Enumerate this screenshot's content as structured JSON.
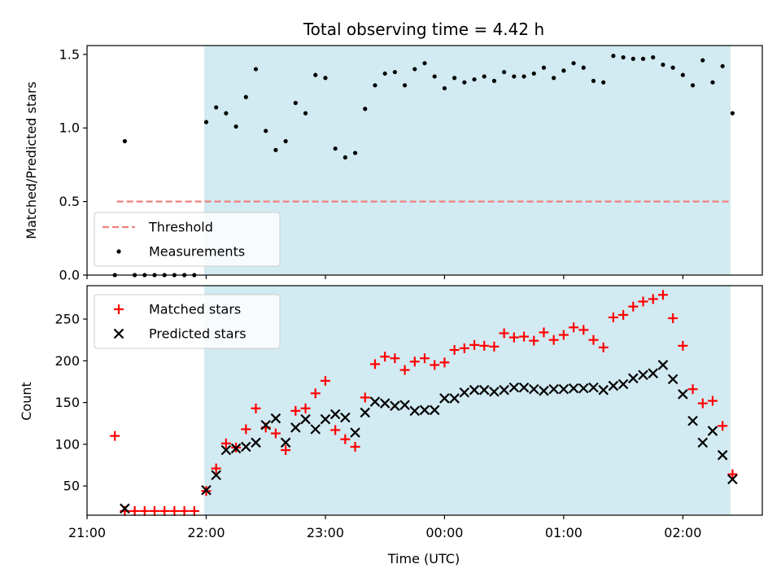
{
  "chart_data": {
    "type": "scatter",
    "title": "Total observing time = 4.42 h",
    "xlabel": "Time (UTC)",
    "x_unit": "hours",
    "xlim": [
      "21:00",
      "02:40"
    ],
    "x_ticks": [
      {
        "t": "21:00",
        "label": "21:00"
      },
      {
        "t": "22:00",
        "label": "22:00"
      },
      {
        "t": "23:00",
        "label": "23:00"
      },
      {
        "t": "00:00",
        "label": "00:00"
      },
      {
        "t": "01:00",
        "label": "01:00"
      },
      {
        "t": "02:00",
        "label": "02:00"
      }
    ],
    "observing_window": {
      "start": "21:59",
      "end": "02:24",
      "color": "#add8e6"
    },
    "panels": [
      {
        "id": "ratio",
        "ylabel": "Matched/Predicted stars",
        "ylim": [
          0,
          1.56
        ],
        "y_ticks": [
          0.0,
          0.5,
          1.0,
          1.5
        ],
        "y_tick_labels": [
          "0.0",
          "0.5",
          "1.0",
          "1.5"
        ],
        "legend": {
          "position": "lower-left",
          "entries": [
            "Threshold",
            "Measurements"
          ]
        },
        "threshold": {
          "name": "Threshold",
          "value": 0.5,
          "from": "21:15",
          "to": "02:24",
          "color": "#f08080"
        },
        "series": [
          {
            "name": "Measurements",
            "kind": "dot",
            "color": "#000000",
            "points": [
              [
                "21:14",
                0.0
              ],
              [
                "21:19",
                0.91
              ],
              [
                "21:24",
                0.0
              ],
              [
                "21:29",
                0.0
              ],
              [
                "21:34",
                0.0
              ],
              [
                "21:39",
                0.0
              ],
              [
                "21:44",
                0.0
              ],
              [
                "21:49",
                0.0
              ],
              [
                "21:54",
                0.0
              ],
              [
                "22:00",
                1.04
              ],
              [
                "22:05",
                1.14
              ],
              [
                "22:10",
                1.1
              ],
              [
                "22:15",
                1.01
              ],
              [
                "22:20",
                1.21
              ],
              [
                "22:25",
                1.4
              ],
              [
                "22:30",
                0.98
              ],
              [
                "22:35",
                0.85
              ],
              [
                "22:40",
                0.91
              ],
              [
                "22:45",
                1.17
              ],
              [
                "22:50",
                1.1
              ],
              [
                "22:55",
                1.36
              ],
              [
                "23:00",
                1.34
              ],
              [
                "23:05",
                0.86
              ],
              [
                "23:10",
                0.8
              ],
              [
                "23:15",
                0.83
              ],
              [
                "23:20",
                1.13
              ],
              [
                "23:25",
                1.29
              ],
              [
                "23:30",
                1.37
              ],
              [
                "23:35",
                1.38
              ],
              [
                "23:40",
                1.29
              ],
              [
                "23:45",
                1.4
              ],
              [
                "23:50",
                1.44
              ],
              [
                "23:55",
                1.35
              ],
              [
                "00:00",
                1.27
              ],
              [
                "00:05",
                1.34
              ],
              [
                "00:10",
                1.31
              ],
              [
                "00:15",
                1.33
              ],
              [
                "00:20",
                1.35
              ],
              [
                "00:25",
                1.32
              ],
              [
                "00:30",
                1.38
              ],
              [
                "00:35",
                1.35
              ],
              [
                "00:40",
                1.35
              ],
              [
                "00:45",
                1.37
              ],
              [
                "00:50",
                1.41
              ],
              [
                "00:55",
                1.34
              ],
              [
                "01:00",
                1.39
              ],
              [
                "01:05",
                1.44
              ],
              [
                "01:10",
                1.41
              ],
              [
                "01:15",
                1.32
              ],
              [
                "01:20",
                1.31
              ],
              [
                "01:25",
                1.49
              ],
              [
                "01:30",
                1.48
              ],
              [
                "01:35",
                1.47
              ],
              [
                "01:40",
                1.47
              ],
              [
                "01:45",
                1.48
              ],
              [
                "01:50",
                1.43
              ],
              [
                "01:55",
                1.41
              ],
              [
                "02:00",
                1.36
              ],
              [
                "02:05",
                1.29
              ],
              [
                "02:10",
                1.46
              ],
              [
                "02:15",
                1.31
              ],
              [
                "02:20",
                1.42
              ],
              [
                "02:25",
                1.1
              ]
            ]
          }
        ]
      },
      {
        "id": "count",
        "ylabel": "Count",
        "ylim": [
          15,
          290
        ],
        "y_ticks": [
          50,
          100,
          150,
          200,
          250
        ],
        "y_tick_labels": [
          "50",
          "100",
          "150",
          "200",
          "250"
        ],
        "legend": {
          "position": "upper-left",
          "entries": [
            "Matched stars",
            "Predicted stars"
          ]
        },
        "series": [
          {
            "name": "Matched stars",
            "kind": "plus",
            "color": "#ff0000",
            "points": [
              [
                "21:14",
                110
              ],
              [
                "21:19",
                20
              ],
              [
                "21:24",
                20
              ],
              [
                "21:29",
                20
              ],
              [
                "21:34",
                20
              ],
              [
                "21:39",
                20
              ],
              [
                "21:44",
                20
              ],
              [
                "21:49",
                20
              ],
              [
                "21:54",
                20
              ],
              [
                "22:00",
                44
              ],
              [
                "22:05",
                71
              ],
              [
                "22:10",
                101
              ],
              [
                "22:15",
                96
              ],
              [
                "22:20",
                118
              ],
              [
                "22:25",
                143
              ],
              [
                "22:30",
                120
              ],
              [
                "22:35",
                113
              ],
              [
                "22:40",
                93
              ],
              [
                "22:45",
                140
              ],
              [
                "22:50",
                143
              ],
              [
                "22:55",
                161
              ],
              [
                "23:00",
                176
              ],
              [
                "23:05",
                117
              ],
              [
                "23:10",
                106
              ],
              [
                "23:15",
                97
              ],
              [
                "23:20",
                156
              ],
              [
                "23:25",
                196
              ],
              [
                "23:30",
                205
              ],
              [
                "23:35",
                203
              ],
              [
                "23:40",
                189
              ],
              [
                "23:45",
                199
              ],
              [
                "23:50",
                203
              ],
              [
                "23:55",
                195
              ],
              [
                "00:00",
                198
              ],
              [
                "00:05",
                213
              ],
              [
                "00:10",
                215
              ],
              [
                "00:15",
                219
              ],
              [
                "00:20",
                218
              ],
              [
                "00:25",
                217
              ],
              [
                "00:30",
                233
              ],
              [
                "00:35",
                228
              ],
              [
                "00:40",
                229
              ],
              [
                "00:45",
                224
              ],
              [
                "00:50",
                234
              ],
              [
                "00:55",
                225
              ],
              [
                "01:00",
                231
              ],
              [
                "01:05",
                240
              ],
              [
                "01:10",
                237
              ],
              [
                "01:15",
                225
              ],
              [
                "01:20",
                216
              ],
              [
                "01:25",
                252
              ],
              [
                "01:30",
                255
              ],
              [
                "01:35",
                265
              ],
              [
                "01:40",
                271
              ],
              [
                "01:45",
                274
              ],
              [
                "01:50",
                279
              ],
              [
                "01:55",
                251
              ],
              [
                "02:00",
                218
              ],
              [
                "02:05",
                166
              ],
              [
                "02:10",
                149
              ],
              [
                "02:15",
                152
              ],
              [
                "02:20",
                122
              ],
              [
                "02:25",
                64
              ]
            ]
          },
          {
            "name": "Predicted stars",
            "kind": "x",
            "color": "#000000",
            "points": [
              [
                "21:19",
                23
              ],
              [
                "22:00",
                45
              ],
              [
                "22:05",
                63
              ],
              [
                "22:10",
                93
              ],
              [
                "22:15",
                95
              ],
              [
                "22:20",
                97
              ],
              [
                "22:25",
                102
              ],
              [
                "22:30",
                123
              ],
              [
                "22:35",
                131
              ],
              [
                "22:40",
                102
              ],
              [
                "22:45",
                120
              ],
              [
                "22:50",
                130
              ],
              [
                "22:55",
                118
              ],
              [
                "23:00",
                130
              ],
              [
                "23:05",
                136
              ],
              [
                "23:10",
                132
              ],
              [
                "23:15",
                114
              ],
              [
                "23:20",
                138
              ],
              [
                "23:25",
                151
              ],
              [
                "23:30",
                149
              ],
              [
                "23:35",
                146
              ],
              [
                "23:40",
                147
              ],
              [
                "23:45",
                140
              ],
              [
                "23:50",
                141
              ],
              [
                "23:55",
                141
              ],
              [
                "00:00",
                155
              ],
              [
                "00:05",
                155
              ],
              [
                "00:10",
                162
              ],
              [
                "00:15",
                165
              ],
              [
                "00:20",
                165
              ],
              [
                "00:25",
                163
              ],
              [
                "00:30",
                165
              ],
              [
                "00:35",
                168
              ],
              [
                "00:40",
                168
              ],
              [
                "00:45",
                166
              ],
              [
                "00:50",
                164
              ],
              [
                "00:55",
                166
              ],
              [
                "01:00",
                166
              ],
              [
                "01:05",
                167
              ],
              [
                "01:10",
                167
              ],
              [
                "01:15",
                168
              ],
              [
                "01:20",
                165
              ],
              [
                "01:25",
                170
              ],
              [
                "01:30",
                172
              ],
              [
                "01:35",
                179
              ],
              [
                "01:40",
                183
              ],
              [
                "01:45",
                185
              ],
              [
                "01:50",
                195
              ],
              [
                "01:55",
                178
              ],
              [
                "02:00",
                160
              ],
              [
                "02:05",
                128
              ],
              [
                "02:10",
                102
              ],
              [
                "02:15",
                116
              ],
              [
                "02:20",
                87
              ],
              [
                "02:25",
                58
              ]
            ]
          }
        ]
      }
    ],
    "grid": false
  }
}
